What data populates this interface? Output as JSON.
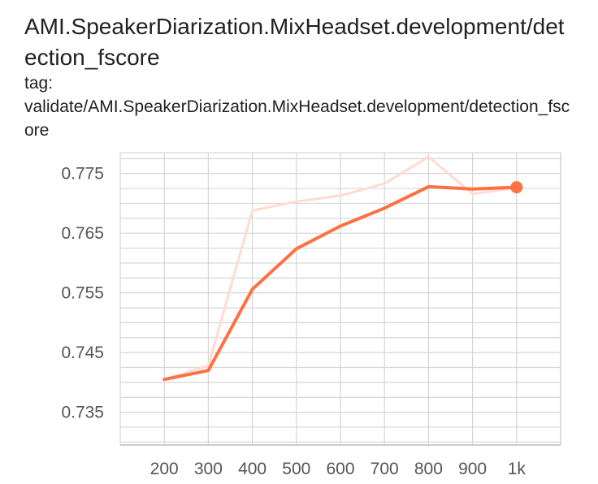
{
  "card": {
    "title": "AMI.SpeakerDiarization.MixHeadset.development/detection_fscore",
    "tag_label": "tag:",
    "tag_value": "validate/AMI.SpeakerDiarization.MixHeadset.development/detection_fscore"
  },
  "chart_data": {
    "type": "line",
    "title": "AMI.SpeakerDiarization.MixHeadset.development/detection_fscore",
    "xlabel": "",
    "ylabel": "",
    "x_ticks": [
      200,
      300,
      400,
      500,
      600,
      700,
      800,
      900,
      1000
    ],
    "x_tick_labels": [
      "200",
      "300",
      "400",
      "500",
      "600",
      "700",
      "800",
      "900",
      "1k"
    ],
    "y_ticks": [
      0.735,
      0.745,
      0.755,
      0.765,
      0.775
    ],
    "y_tick_labels": [
      "0.735",
      "0.745",
      "0.755",
      "0.765",
      "0.775"
    ],
    "xlim": [
      100,
      1100
    ],
    "ylim": [
      0.7295,
      0.7785
    ],
    "grid": true,
    "series": [
      {
        "style": "raw",
        "color": "#ffdbd0",
        "x": [
          200,
          300,
          400,
          500,
          600,
          700,
          800,
          900,
          1000
        ],
        "y": [
          0.7405,
          0.7428,
          0.7688,
          0.7703,
          0.7713,
          0.7733,
          0.7778,
          0.7716,
          0.7726
        ]
      },
      {
        "style": "smoothed",
        "color": "#ff7043",
        "x": [
          200,
          300,
          400,
          500,
          600,
          700,
          800,
          900,
          1000
        ],
        "y": [
          0.7405,
          0.742,
          0.7556,
          0.7624,
          0.7662,
          0.7692,
          0.7728,
          0.7724,
          0.7727
        ]
      }
    ],
    "highlight_point": {
      "x": 1000,
      "y": 0.7727,
      "color": "#ff7043"
    }
  }
}
